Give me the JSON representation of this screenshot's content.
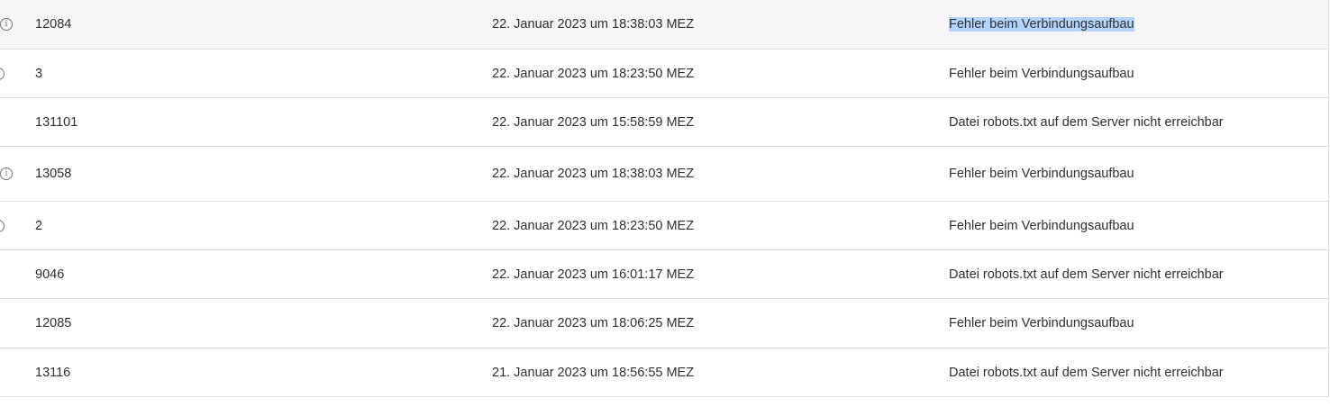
{
  "rows": [
    {
      "id": "12084",
      "date": "22. Januar 2023 um 18:38:03 MEZ",
      "message": "Fehler beim Verbindungsaufbau",
      "icon": "info-icon",
      "highlighted": true,
      "selected": true
    },
    {
      "id": "3",
      "date": "22. Januar 2023 um 18:23:50 MEZ",
      "message": "Fehler beim Verbindungsaufbau",
      "icon": "info-icon-partial"
    },
    {
      "id": "131101",
      "date": "22. Januar 2023 um 15:58:59 MEZ",
      "message": "Datei robots.txt auf dem Server nicht erreichbar",
      "icon": null
    },
    {
      "id": "13058",
      "date": "22. Januar 2023 um 18:38:03 MEZ",
      "message": "Fehler beim Verbindungsaufbau",
      "icon": "info-icon"
    },
    {
      "id": "2",
      "date": "22. Januar 2023 um 18:23:50 MEZ",
      "message": "Fehler beim Verbindungsaufbau",
      "icon": "info-icon-partial"
    },
    {
      "id": "9046",
      "date": "22. Januar 2023 um 16:01:17 MEZ",
      "message": "Datei robots.txt auf dem Server nicht erreichbar",
      "icon": null
    },
    {
      "id": "12085",
      "date": "22. Januar 2023 um 18:06:25 MEZ",
      "message": "Fehler beim Verbindungsaufbau",
      "icon": null
    },
    {
      "id": "13116",
      "date": "21. Januar 2023 um 18:56:55 MEZ",
      "message": "Datei robots.txt auf dem Server nicht erreichbar",
      "icon": null
    }
  ],
  "colors": {
    "highlight_row": "#f6f6f6",
    "selection": "#b3d4fc",
    "divider": "#dcdcdc"
  }
}
